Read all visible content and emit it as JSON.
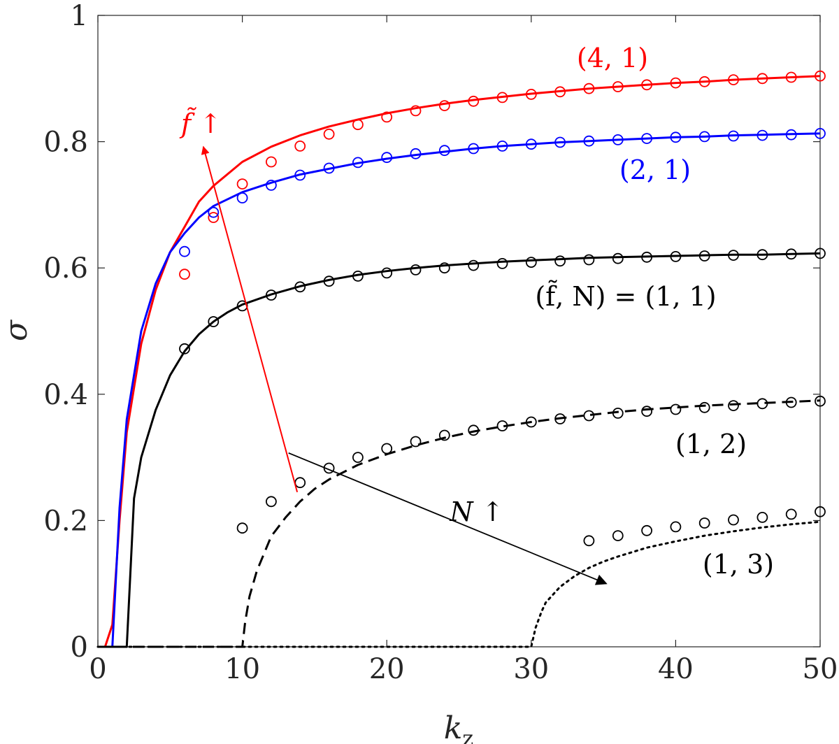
{
  "chart_data": {
    "type": "line",
    "xlabel_main": "k",
    "xlabel_sub": "z",
    "ylabel": "σ",
    "xlim": [
      0,
      50
    ],
    "ylim": [
      0,
      1
    ],
    "xticks": [
      "0",
      "10",
      "20",
      "30",
      "40",
      "50"
    ],
    "yticks": [
      "0",
      "0.2",
      "0.4",
      "0.6",
      "0.8",
      "1"
    ],
    "grid": false,
    "series": [
      {
        "name": "(4, 1)",
        "color": "#ff0000",
        "style": "solid",
        "curve": {
          "x": [
            0.5,
            1.0,
            1.5,
            2.0,
            3.0,
            4.0,
            5.0,
            6.0,
            7.0,
            8.0,
            10.0,
            12.0,
            14.0,
            16.0,
            18.0,
            20.0,
            22.0,
            24.0,
            26.0,
            28.0,
            30.0,
            32.0,
            34.0,
            36.0,
            38.0,
            40.0,
            42.0,
            44.0,
            46.0,
            48.0,
            50.0
          ],
          "y": [
            0.0,
            0.035,
            0.2,
            0.34,
            0.48,
            0.565,
            0.625,
            0.665,
            0.705,
            0.73,
            0.768,
            0.792,
            0.81,
            0.824,
            0.835,
            0.845,
            0.853,
            0.86,
            0.866,
            0.871,
            0.876,
            0.88,
            0.884,
            0.887,
            0.89,
            0.893,
            0.895,
            0.898,
            0.9,
            0.902,
            0.904
          ]
        },
        "markers": {
          "x": [
            6,
            8,
            10,
            12,
            14,
            16,
            18,
            20,
            22,
            24,
            26,
            28,
            30,
            32,
            34,
            36,
            38,
            40,
            42,
            44,
            46,
            48,
            50
          ],
          "y": [
            0.59,
            0.68,
            0.733,
            0.768,
            0.793,
            0.812,
            0.827,
            0.839,
            0.849,
            0.857,
            0.864,
            0.87,
            0.875,
            0.879,
            0.884,
            0.887,
            0.89,
            0.893,
            0.895,
            0.898,
            0.9,
            0.902,
            0.904
          ]
        }
      },
      {
        "name": "(2, 1)",
        "color": "#0000ff",
        "style": "solid",
        "curve": {
          "x": [
            1.0,
            1.5,
            2.0,
            3.0,
            4.0,
            5.0,
            6.0,
            7.0,
            8.0,
            10.0,
            12.0,
            14.0,
            16.0,
            18.0,
            20.0,
            22.0,
            24.0,
            26.0,
            28.0,
            30.0,
            32.0,
            34.0,
            36.0,
            38.0,
            40.0,
            42.0,
            44.0,
            46.0,
            48.0,
            50.0
          ],
          "y": [
            0.0,
            0.22,
            0.36,
            0.5,
            0.575,
            0.625,
            0.655,
            0.68,
            0.698,
            0.72,
            0.735,
            0.748,
            0.757,
            0.766,
            0.773,
            0.779,
            0.784,
            0.789,
            0.793,
            0.796,
            0.799,
            0.801,
            0.803,
            0.805,
            0.807,
            0.808,
            0.81,
            0.811,
            0.812,
            0.813
          ]
        },
        "markers": {
          "x": [
            6,
            8,
            10,
            12,
            14,
            16,
            18,
            20,
            22,
            24,
            26,
            28,
            30,
            32,
            34,
            36,
            38,
            40,
            42,
            44,
            46,
            48,
            50
          ],
          "y": [
            0.626,
            0.688,
            0.711,
            0.731,
            0.747,
            0.758,
            0.767,
            0.775,
            0.781,
            0.786,
            0.789,
            0.793,
            0.796,
            0.799,
            0.801,
            0.803,
            0.805,
            0.807,
            0.808,
            0.809,
            0.81,
            0.811,
            0.813
          ]
        }
      },
      {
        "name": "(f̃, N) = (1, 1)",
        "color": "#000000",
        "style": "solid",
        "curve": {
          "x": [
            0.0,
            2.0,
            2.5,
            3.0,
            4.0,
            5.0,
            6.0,
            7.0,
            8.0,
            9.0,
            10.0,
            12.0,
            14.0,
            16.0,
            18.0,
            20.0,
            22.0,
            24.0,
            26.0,
            28.0,
            30.0,
            32.0,
            34.0,
            36.0,
            38.0,
            40.0,
            42.0,
            44.0,
            46.0,
            48.0,
            50.0
          ],
          "y": [
            0.0,
            0.0,
            0.235,
            0.3,
            0.375,
            0.43,
            0.468,
            0.495,
            0.515,
            0.53,
            0.542,
            0.558,
            0.571,
            0.581,
            0.589,
            0.595,
            0.6,
            0.604,
            0.607,
            0.61,
            0.612,
            0.614,
            0.616,
            0.617,
            0.618,
            0.619,
            0.62,
            0.621,
            0.621,
            0.622,
            0.623
          ]
        },
        "markers": {
          "x": [
            6,
            8,
            10,
            12,
            14,
            16,
            18,
            20,
            22,
            24,
            26,
            28,
            30,
            32,
            34,
            36,
            38,
            40,
            42,
            44,
            46,
            48,
            50
          ],
          "y": [
            0.472,
            0.515,
            0.54,
            0.557,
            0.57,
            0.579,
            0.587,
            0.592,
            0.597,
            0.6,
            0.604,
            0.607,
            0.609,
            0.611,
            0.613,
            0.615,
            0.617,
            0.618,
            0.619,
            0.62,
            0.621,
            0.622,
            0.623
          ]
        }
      },
      {
        "name": "(1, 2)",
        "color": "#000000",
        "style": "dashed",
        "curve": {
          "x": [
            0.0,
            10.0,
            10.2,
            10.5,
            11.0,
            12.0,
            13.0,
            14.0,
            15.0,
            16.0,
            18.0,
            20.0,
            22.0,
            24.0,
            26.0,
            28.0,
            30.0,
            32.0,
            34.0,
            36.0,
            38.0,
            40.0,
            42.0,
            44.0,
            46.0,
            48.0,
            50.0
          ],
          "y": [
            0.0,
            0.0,
            0.04,
            0.08,
            0.12,
            0.175,
            0.205,
            0.23,
            0.25,
            0.265,
            0.288,
            0.305,
            0.319,
            0.331,
            0.341,
            0.349,
            0.356,
            0.362,
            0.367,
            0.372,
            0.376,
            0.379,
            0.382,
            0.384,
            0.386,
            0.388,
            0.39
          ]
        },
        "markers": {
          "x": [
            10,
            12,
            14,
            16,
            18,
            20,
            22,
            24,
            26,
            28,
            30,
            32,
            34,
            36,
            38,
            40,
            42,
            44,
            46,
            48,
            50
          ],
          "y": [
            0.188,
            0.23,
            0.26,
            0.283,
            0.3,
            0.314,
            0.325,
            0.335,
            0.343,
            0.35,
            0.356,
            0.361,
            0.366,
            0.37,
            0.373,
            0.376,
            0.379,
            0.382,
            0.385,
            0.387,
            0.389
          ]
        }
      },
      {
        "name": "(1, 3)",
        "color": "#000000",
        "style": "dotted",
        "curve": {
          "x": [
            0.0,
            30.0,
            30.3,
            30.7,
            31.0,
            32.0,
            33.0,
            34.0,
            35.0,
            36.0,
            38.0,
            40.0,
            42.0,
            44.0,
            46.0,
            48.0,
            50.0
          ],
          "y": [
            0.0,
            0.0,
            0.03,
            0.055,
            0.07,
            0.095,
            0.112,
            0.125,
            0.135,
            0.143,
            0.157,
            0.167,
            0.176,
            0.183,
            0.189,
            0.194,
            0.198
          ]
        },
        "markers": {
          "x": [
            34,
            36,
            38,
            40,
            42,
            44,
            46,
            48,
            50
          ],
          "y": [
            0.168,
            0.176,
            0.184,
            0.19,
            0.196,
            0.201,
            0.205,
            0.21,
            0.214
          ]
        }
      }
    ],
    "annotations": [
      {
        "id": "label-41",
        "text": "(4, 1)",
        "color": "#ff0000"
      },
      {
        "id": "label-21",
        "text": "(2, 1)",
        "color": "#0000ff"
      },
      {
        "id": "label-11",
        "text": "(f̃, N) = (1, 1)",
        "color": "#000000"
      },
      {
        "id": "label-12",
        "text": "(1, 2)",
        "color": "#000000"
      },
      {
        "id": "label-13",
        "text": "(1, 3)",
        "color": "#000000"
      },
      {
        "id": "f-arrow-label",
        "text": "f̃ ↑",
        "color": "#ff0000"
      },
      {
        "id": "n-arrow-label",
        "text": "N ↑",
        "color": "#000000"
      }
    ],
    "arrows": [
      {
        "id": "f-arrow",
        "color": "#ff0000",
        "from": [
          13.8,
          0.245
        ],
        "to": [
          7.3,
          0.792
        ]
      },
      {
        "id": "n-arrow",
        "color": "#000000",
        "from": [
          13.2,
          0.307
        ],
        "to": [
          35.2,
          0.1
        ]
      }
    ]
  }
}
